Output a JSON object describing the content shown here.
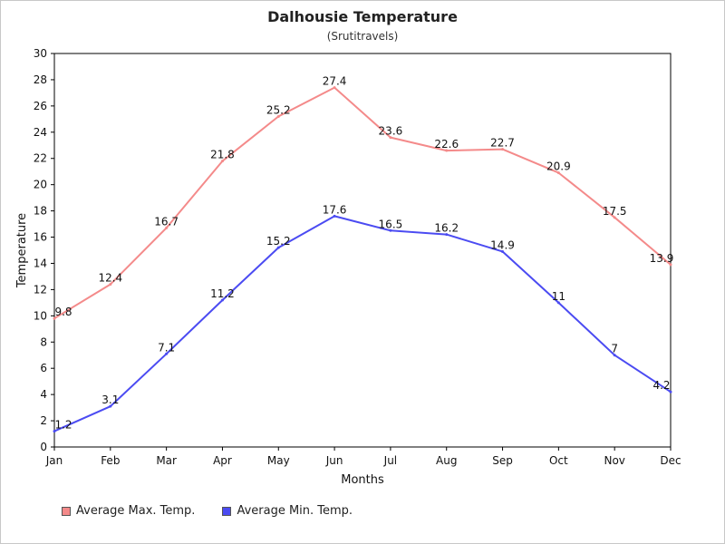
{
  "chart_data": {
    "type": "line",
    "title": "Dalhousie Temperature",
    "subtitle": "(Srutitravels)",
    "xlabel": "Months",
    "ylabel": "Temperature",
    "categories": [
      "Jan",
      "Feb",
      "Mar",
      "Apr",
      "May",
      "Jun",
      "Jul",
      "Aug",
      "Sep",
      "Oct",
      "Nov",
      "Dec"
    ],
    "ylim": [
      0,
      30
    ],
    "yticks": [
      0,
      2,
      4,
      6,
      8,
      10,
      12,
      14,
      16,
      18,
      20,
      22,
      24,
      26,
      28,
      30
    ],
    "grid": false,
    "legend_position": "bottom-left",
    "series": [
      {
        "name": "Average Max. Temp.",
        "color": "#f48a8a",
        "values": [
          9.8,
          12.4,
          16.7,
          21.8,
          25.2,
          27.4,
          23.6,
          22.6,
          22.7,
          20.9,
          17.5,
          13.9
        ]
      },
      {
        "name": "Average Min. Temp.",
        "color": "#4b4bf2",
        "values": [
          1.2,
          3.1,
          7.1,
          11.2,
          15.2,
          17.6,
          16.5,
          16.2,
          14.9,
          11,
          7,
          4.2
        ]
      }
    ]
  }
}
